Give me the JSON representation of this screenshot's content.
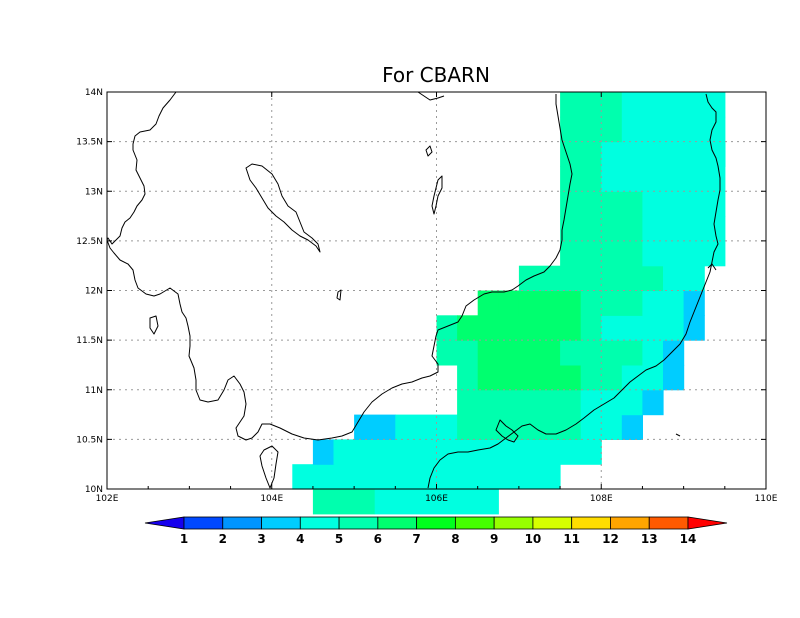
{
  "chart_data": {
    "type": "heatmap",
    "title": "For CBARN",
    "x_tick_labels": [
      "102E",
      "104E",
      "106E",
      "108E",
      "110E"
    ],
    "y_tick_labels": [
      "10N",
      "10.5N",
      "11N",
      "11.5N",
      "12N",
      "12.5N",
      "13N",
      "13.5N",
      "14N"
    ],
    "xlim": [
      102,
      110
    ],
    "ylim": [
      10,
      14
    ],
    "grid": true,
    "colorbar": {
      "labels": [
        "1",
        "2",
        "3",
        "4",
        "5",
        "6",
        "7",
        "8",
        "9",
        "10",
        "11",
        "12",
        "13",
        "14"
      ],
      "colors": [
        "#1600ee",
        "#0048ff",
        "#0095ff",
        "#00cdff",
        "#00ffe0",
        "#00ffae",
        "#00ff6f",
        "#00ff1e",
        "#45ff00",
        "#97ff00",
        "#d6ff00",
        "#ffdd00",
        "#ffa500",
        "#ff5a00",
        "#ff0000"
      ]
    },
    "grid_resolution_deg": 0.25,
    "grid_values": [
      "",
      "..........,,,,,,;;;;;;;;;;;;;;;;;",
      "..........,,,,,,,,;;;;;;;;;;;;;;;",
      "..........,,,,,,,,,,,;;;;;;;;;;;;",
      "..........,,,,,,,,,,,,,,,;;;;;;;;",
      "...........,,,,,,,,,,,,,,,;;;;;;;",
      "...........,,,,,,,,,,,,,,,;;;;;;;",
      "...........,,,,,,,,,,,,,,,;;;;;;;",
      "...........,,,,,,,,,,,,,,,;;;;;;;",
      "...........,,,,,,,,,,,,,,,;;;;;;;",
      "...........,,,,,,,,,,,,,,,,;;;;;;",
      "............,,,,,,,,,,,,,,,,;;;;;",
      ".............,,,,,,,,,,,,,,,,,;;;",
      ".............,,,,,,,,,,,,,,,,,,;;",
      "..............,,,,,,,,,,,,,,,,,,,",
      "...............,,,,,,,,,,,,,,,,,,"
    ],
    "grid_values_note": "",
    "cells": [
      {
        "lon": 104.5,
        "lat": 10.0,
        "v": 5
      },
      {
        "lon": 104.75,
        "lat": 10.0,
        "v": 5
      },
      {
        "lon": 105.0,
        "lat": 10.0,
        "v": 5
      },
      {
        "lon": 104.25,
        "lat": 10.25,
        "v": 4
      },
      {
        "lon": 104.5,
        "lat": 10.25,
        "v": 5
      },
      {
        "lon": 104.75,
        "lat": 10.25,
        "v": 4
      },
      {
        "lon": 105.0,
        "lat": 10.25,
        "v": 4
      },
      {
        "lon": 105.25,
        "lat": 10.25,
        "v": 4
      },
      {
        "lon": 105.5,
        "lat": 10.25,
        "v": 4
      },
      {
        "lon": 105.75,
        "lat": 10.25,
        "v": 4
      },
      {
        "lon": 106.0,
        "lat": 10.25,
        "v": 4
      },
      {
        "lon": 106.25,
        "lat": 10.25,
        "v": 4
      },
      {
        "lon": 106.5,
        "lat": 10.25,
        "v": 4
      },
      {
        "lon": 106.75,
        "lat": 10.25,
        "v": 4
      },
      {
        "lon": 107.0,
        "lat": 10.25,
        "v": 4
      },
      {
        "lon": 107.25,
        "lat": 10.25,
        "v": 4
      }
    ]
  }
}
